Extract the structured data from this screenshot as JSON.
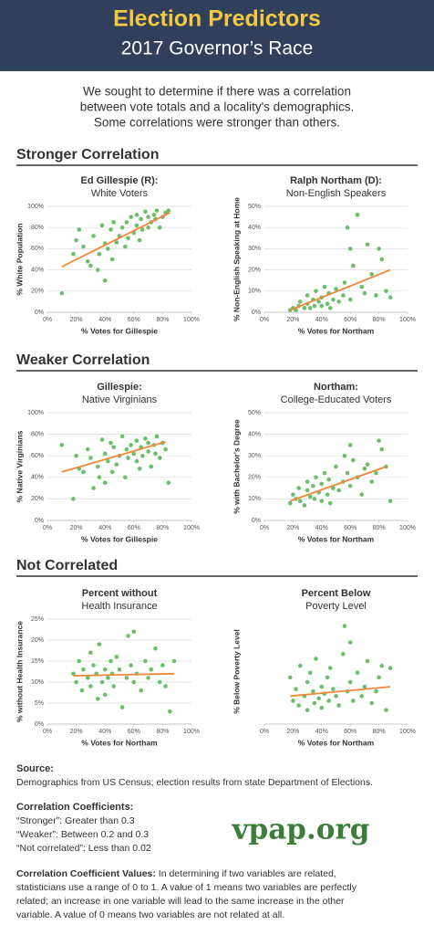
{
  "header": {
    "title": "Election Predictors",
    "subtitle": "2017 Governor’s Race"
  },
  "intro": [
    "We sought to determine if there was a correlation",
    "between vote totals and a locality's demographics.",
    "Some correlations were stronger than others."
  ],
  "sections": [
    "Stronger Correlation",
    "Weaker Correlation",
    "Not Correlated"
  ],
  "chart_data": [
    {
      "type": "scatter",
      "title_lines": [
        "Ed Gillespie (R):",
        "White Voters"
      ],
      "x_label": "% Votes for Gillespie",
      "y_label": "% White Population",
      "color": "#6cbf6a",
      "xlim": [
        0,
        100
      ],
      "ylim": [
        0,
        100
      ],
      "xticks": [
        {
          "value": 0,
          "label": "0%"
        },
        {
          "value": 20,
          "label": "20%"
        },
        {
          "value": 40,
          "label": "40%"
        },
        {
          "value": 60,
          "label": "60%"
        },
        {
          "value": 80,
          "label": "80%"
        },
        {
          "value": 100,
          "label": "100%"
        }
      ],
      "yticks": [
        {
          "value": 0,
          "label": "0%"
        },
        {
          "value": 20,
          "label": "20%"
        },
        {
          "value": 40,
          "label": "40%"
        },
        {
          "value": 60,
          "label": "60%"
        },
        {
          "value": 80,
          "label": "80%"
        },
        {
          "value": 100,
          "label": "100%"
        }
      ],
      "x": [
        10,
        18,
        20,
        22,
        25,
        28,
        30,
        32,
        35,
        36,
        38,
        40,
        40,
        42,
        44,
        45,
        46,
        48,
        50,
        52,
        54,
        55,
        56,
        58,
        60,
        62,
        62,
        64,
        65,
        66,
        68,
        70,
        70,
        72,
        74,
        75,
        76,
        78,
        80,
        82,
        84
      ],
      "values": [
        18,
        55,
        68,
        78,
        62,
        48,
        44,
        72,
        40,
        55,
        82,
        30,
        65,
        60,
        78,
        50,
        85,
        66,
        72,
        80,
        62,
        85,
        70,
        90,
        75,
        82,
        92,
        68,
        88,
        78,
        95,
        80,
        90,
        85,
        92,
        88,
        96,
        80,
        90,
        94,
        96
      ],
      "trend": {
        "x": [
          10,
          85
        ],
        "values": [
          43,
          94
        ],
        "color": "#f0883a"
      }
    },
    {
      "type": "scatter",
      "title_lines": [
        "Ralph Northam (D):",
        "Non-English Speakers"
      ],
      "x_label": "% Votes for Northam",
      "y_label": "% Non-English Speaking at Home",
      "color": "#6cbf6a",
      "xlim": [
        0,
        100
      ],
      "ylim": [
        0,
        50
      ],
      "xticks": [
        {
          "value": 0,
          "label": "0%"
        },
        {
          "value": 20,
          "label": "20%"
        },
        {
          "value": 40,
          "label": "40%"
        },
        {
          "value": 60,
          "label": "60%"
        },
        {
          "value": 80,
          "label": "80%"
        },
        {
          "value": 100,
          "label": "100%"
        }
      ],
      "yticks": [
        {
          "value": 0,
          "label": "0%"
        },
        {
          "value": 10,
          "label": "10%"
        },
        {
          "value": 20,
          "label": "20%"
        },
        {
          "value": 30,
          "label": "30%"
        },
        {
          "value": 40,
          "label": "40%"
        },
        {
          "value": 50,
          "label": "50%"
        }
      ],
      "x": [
        18,
        20,
        22,
        24,
        25,
        28,
        30,
        30,
        32,
        34,
        35,
        36,
        38,
        40,
        40,
        42,
        44,
        45,
        46,
        48,
        50,
        52,
        55,
        56,
        58,
        60,
        60,
        62,
        65,
        68,
        70,
        72,
        75,
        78,
        80,
        82,
        85,
        88
      ],
      "values": [
        1,
        2,
        1,
        3,
        5,
        2,
        4,
        8,
        2,
        6,
        3,
        10,
        5,
        3,
        7,
        12,
        4,
        9,
        2,
        6,
        11,
        5,
        8,
        14,
        40,
        30,
        6,
        22,
        46,
        12,
        9,
        32,
        18,
        8,
        30,
        25,
        10,
        7
      ],
      "trend": {
        "x": [
          18,
          88
        ],
        "values": [
          1,
          20
        ],
        "color": "#f0883a"
      }
    },
    {
      "type": "scatter",
      "title_lines": [
        "Gillespie:",
        "Native Virginians"
      ],
      "x_label": "% Votes for Gillespie",
      "y_label": "% Native Virginians",
      "color": "#6cbf6a",
      "xlim": [
        0,
        100
      ],
      "ylim": [
        0,
        100
      ],
      "xticks": [
        {
          "value": 0,
          "label": "0%"
        },
        {
          "value": 20,
          "label": "20%"
        },
        {
          "value": 40,
          "label": "40%"
        },
        {
          "value": 60,
          "label": "60%"
        },
        {
          "value": 80,
          "label": "80%"
        },
        {
          "value": 100,
          "label": "100%"
        }
      ],
      "yticks": [
        {
          "value": 0,
          "label": "0%"
        },
        {
          "value": 20,
          "label": "20%"
        },
        {
          "value": 40,
          "label": "40%"
        },
        {
          "value": 60,
          "label": "60%"
        },
        {
          "value": 80,
          "label": "80%"
        },
        {
          "value": 100,
          "label": "100%"
        }
      ],
      "x": [
        10,
        18,
        20,
        22,
        25,
        28,
        30,
        32,
        35,
        36,
        38,
        40,
        40,
        42,
        44,
        45,
        46,
        48,
        50,
        52,
        54,
        55,
        56,
        58,
        60,
        62,
        62,
        64,
        65,
        66,
        68,
        70,
        70,
        72,
        74,
        75,
        76,
        78,
        80,
        82,
        84
      ],
      "values": [
        70,
        20,
        60,
        48,
        45,
        66,
        58,
        30,
        50,
        40,
        75,
        62,
        35,
        55,
        72,
        45,
        68,
        52,
        60,
        78,
        40,
        66,
        58,
        70,
        62,
        55,
        74,
        48,
        68,
        60,
        76,
        64,
        72,
        50,
        70,
        62,
        78,
        58,
        72,
        66,
        35
      ],
      "trend": {
        "x": [
          10,
          82
        ],
        "values": [
          45,
          73
        ],
        "color": "#f0883a"
      }
    },
    {
      "type": "scatter",
      "title_lines": [
        "Northam:",
        "College-Educated Voters"
      ],
      "x_label": "% Votes for Northam",
      "y_label": "% with Bachelor's Degree",
      "color": "#6cbf6a",
      "xlim": [
        0,
        100
      ],
      "ylim": [
        0,
        50
      ],
      "xticks": [
        {
          "value": 0,
          "label": "0%"
        },
        {
          "value": 20,
          "label": "20%"
        },
        {
          "value": 40,
          "label": "40%"
        },
        {
          "value": 60,
          "label": "60%"
        },
        {
          "value": 80,
          "label": "80%"
        },
        {
          "value": 100,
          "label": "100%"
        }
      ],
      "yticks": [
        {
          "value": 0,
          "label": "0%"
        },
        {
          "value": 10,
          "label": "10%"
        },
        {
          "value": 20,
          "label": "20%"
        },
        {
          "value": 30,
          "label": "30%"
        },
        {
          "value": 40,
          "label": "40%"
        },
        {
          "value": 50,
          "label": "50%"
        }
      ],
      "x": [
        18,
        20,
        22,
        24,
        25,
        28,
        30,
        30,
        32,
        34,
        35,
        36,
        38,
        40,
        40,
        42,
        44,
        45,
        46,
        48,
        50,
        52,
        55,
        56,
        58,
        60,
        60,
        62,
        65,
        68,
        70,
        72,
        75,
        78,
        80,
        82,
        85,
        88
      ],
      "values": [
        8,
        12,
        10,
        15,
        9,
        7,
        14,
        18,
        11,
        16,
        10,
        20,
        13,
        9,
        17,
        22,
        12,
        19,
        8,
        15,
        25,
        14,
        18,
        30,
        22,
        35,
        16,
        28,
        20,
        12,
        24,
        26,
        18,
        22,
        37,
        33,
        25,
        9
      ],
      "trend": {
        "x": [
          18,
          85
        ],
        "values": [
          9,
          25
        ],
        "color": "#f0883a"
      }
    },
    {
      "type": "scatter",
      "title_lines": [
        "Percent without",
        "Health Insurance"
      ],
      "x_label": "% Votes for Northam",
      "y_label": "% without Health Insurance",
      "color": "#6cbf6a",
      "xlim": [
        0,
        100
      ],
      "ylim": [
        0,
        25
      ],
      "xticks": [
        {
          "value": 0,
          "label": "0%"
        },
        {
          "value": 20,
          "label": "20%"
        },
        {
          "value": 40,
          "label": "40%"
        },
        {
          "value": 60,
          "label": "60%"
        },
        {
          "value": 80,
          "label": "80%"
        },
        {
          "value": 100,
          "label": "100%"
        }
      ],
      "yticks": [
        {
          "value": 0,
          "label": "0%"
        },
        {
          "value": 5,
          "label": "5%"
        },
        {
          "value": 10,
          "label": "10%"
        },
        {
          "value": 15,
          "label": "15%"
        },
        {
          "value": 20,
          "label": "20%"
        },
        {
          "value": 25,
          "label": "25%"
        }
      ],
      "x": [
        18,
        20,
        22,
        24,
        25,
        28,
        30,
        30,
        32,
        34,
        35,
        36,
        38,
        40,
        40,
        42,
        44,
        45,
        46,
        48,
        50,
        52,
        55,
        56,
        58,
        60,
        60,
        62,
        65,
        68,
        70,
        72,
        75,
        78,
        80,
        82,
        85,
        88
      ],
      "values": [
        12,
        10,
        15,
        8,
        13,
        11,
        17,
        9,
        14,
        12,
        6,
        19,
        10,
        13,
        7,
        11,
        15,
        12,
        9,
        16,
        13,
        4,
        11,
        21,
        14,
        10,
        22,
        12,
        8,
        15,
        11,
        13,
        18,
        10,
        14,
        9,
        3,
        15
      ],
      "trend": {
        "x": [
          18,
          88
        ],
        "values": [
          11.5,
          12
        ],
        "color": "#f0883a"
      }
    },
    {
      "type": "scatter",
      "title_lines": [
        "Percent Below",
        "Poverty Level"
      ],
      "x_label": "% Votes for Northam",
      "y_label": "% Below Poverty Level",
      "color": "#6cbf6a",
      "xlim": [
        0,
        100
      ],
      "ylim": [
        0,
        45
      ],
      "xticks": [
        {
          "value": 0,
          "label": "0%"
        },
        {
          "value": 20,
          "label": "20%"
        },
        {
          "value": 40,
          "label": "40%"
        },
        {
          "value": 60,
          "label": "60%"
        },
        {
          "value": 80,
          "label": "80%"
        },
        {
          "value": 100,
          "label": "100%"
        }
      ],
      "x": [
        18,
        20,
        22,
        24,
        25,
        28,
        30,
        30,
        32,
        34,
        35,
        36,
        38,
        40,
        40,
        42,
        44,
        45,
        46,
        48,
        50,
        52,
        55,
        56,
        58,
        60,
        60,
        62,
        65,
        68,
        70,
        72,
        75,
        78,
        80,
        82,
        85,
        88
      ],
      "values": [
        20,
        10,
        15,
        8,
        25,
        12,
        18,
        6,
        22,
        14,
        9,
        28,
        11,
        16,
        7,
        13,
        20,
        10,
        24,
        15,
        12,
        8,
        30,
        42,
        14,
        18,
        35,
        10,
        22,
        12,
        16,
        27,
        9,
        14,
        20,
        25,
        6,
        24
      ],
      "trend": {
        "x": [
          18,
          88
        ],
        "values": [
          12,
          16
        ],
        "color": "#f0883a"
      }
    }
  ],
  "source": {
    "label": "Source:",
    "text": "Demographics from US Census; election results from state Department of Elections."
  },
  "coefficients": {
    "label": "Correlation Coefficients:",
    "lines": [
      "“Stronger”: Greater than 0.3",
      "“Weaker”: Between 0.2 and 0.3",
      "“Not correlated”: Less than 0.02"
    ]
  },
  "logo": "vpap.org",
  "values_note": {
    "label": "Correlation Coefficient Values:",
    "lines": [
      " In determining if two variables are related,",
      "statisticians use a range of 0 to 1. A value of 1 means two variables are perfectly",
      "related; an increase in one variable will lead to the same increase in the other",
      "variable. A value of 0 means two variables are not related at all."
    ]
  }
}
